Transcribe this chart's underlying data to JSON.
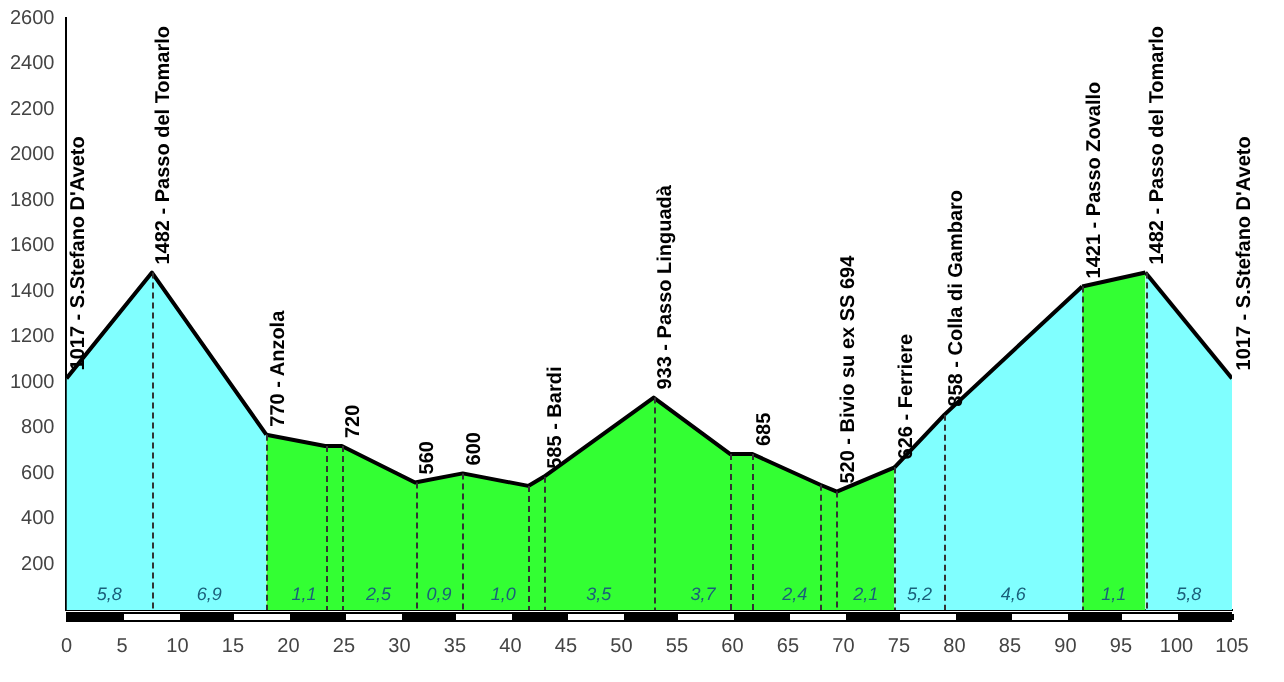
{
  "chart_data": {
    "type": "area",
    "series": [
      {
        "color": "#80ffff",
        "x": [
          0,
          7.7,
          18.0
        ],
        "values": [
          1017,
          1482,
          770
        ]
      },
      {
        "color": "#33ff33",
        "x": [
          18.0,
          23.3,
          24.8,
          31.4,
          35.7,
          41.6,
          43.0,
          52.9,
          59.8,
          61.8,
          67.9,
          69.4,
          74.6
        ],
        "values": [
          770,
          720,
          720,
          560,
          600,
          545,
          585,
          933,
          685,
          685,
          550,
          520,
          626
        ]
      },
      {
        "color": "#80ffff",
        "x": [
          74.6,
          79.1,
          91.5
        ],
        "values": [
          626,
          858,
          1421
        ]
      },
      {
        "color": "#33ff33",
        "x": [
          91.5,
          97.2
        ],
        "values": [
          1421,
          1482
        ]
      },
      {
        "color": "#80ffff",
        "x": [
          97.2,
          105
        ],
        "values": [
          1482,
          1017
        ]
      }
    ],
    "xlim": [
      0,
      105
    ],
    "xticks": [
      0,
      5,
      10,
      15,
      20,
      25,
      30,
      35,
      40,
      45,
      50,
      55,
      60,
      65,
      70,
      75,
      80,
      85,
      90,
      95,
      100,
      105
    ],
    "ylim": [
      0,
      2600
    ],
    "yticks": [
      200,
      400,
      600,
      800,
      1000,
      1200,
      1400,
      1600,
      1800,
      2000,
      2200,
      2400,
      2600
    ],
    "grid": false,
    "legend": false,
    "ref_lines": [
      {
        "axis": "x",
        "value": 7.7,
        "line_style": "dashed"
      },
      {
        "axis": "x",
        "value": 18.0,
        "line_style": "dashed"
      },
      {
        "axis": "x",
        "value": 23.3,
        "line_style": "dashed"
      },
      {
        "axis": "x",
        "value": 24.8,
        "line_style": "dashed"
      },
      {
        "axis": "x",
        "value": 31.4,
        "line_style": "dashed"
      },
      {
        "axis": "x",
        "value": 35.7,
        "line_style": "dashed"
      },
      {
        "axis": "x",
        "value": 41.6,
        "line_style": "dashed"
      },
      {
        "axis": "x",
        "value": 43.0,
        "line_style": "dashed"
      },
      {
        "axis": "x",
        "value": 52.9,
        "line_style": "dashed"
      },
      {
        "axis": "x",
        "value": 59.8,
        "line_style": "dashed"
      },
      {
        "axis": "x",
        "value": 61.8,
        "line_style": "dashed"
      },
      {
        "axis": "x",
        "value": 67.9,
        "line_style": "dashed"
      },
      {
        "axis": "x",
        "value": 69.4,
        "line_style": "dashed"
      },
      {
        "axis": "x",
        "value": 74.6,
        "line_style": "dashed"
      },
      {
        "axis": "x",
        "value": 79.1,
        "line_style": "dashed"
      },
      {
        "axis": "x",
        "value": 91.5,
        "line_style": "dashed"
      },
      {
        "axis": "x",
        "value": 97.2,
        "line_style": "dashed"
      }
    ],
    "annotations": [
      {
        "text": "1017 - S.Stefano D'Aveto",
        "x": 0,
        "y": 1017
      },
      {
        "text": "1482 - Passo del Tomarlo",
        "x": 7.7,
        "y": 1482
      },
      {
        "text": "770 - Anzola",
        "x": 18.0,
        "y": 770
      },
      {
        "text": "720",
        "x": 24.8,
        "y": 720
      },
      {
        "text": "560",
        "x": 31.4,
        "y": 560
      },
      {
        "text": "600",
        "x": 35.7,
        "y": 600
      },
      {
        "text": "585 - Bardi",
        "x": 43.0,
        "y": 585
      },
      {
        "text": "933 - Passo Linguadà",
        "x": 52.9,
        "y": 933
      },
      {
        "text": "685",
        "x": 61.8,
        "y": 685
      },
      {
        "text": "520 - Bivio su ex SS 694",
        "x": 69.4,
        "y": 520
      },
      {
        "text": "626 - Ferriere",
        "x": 74.6,
        "y": 626
      },
      {
        "text": "858 - Colla di Gambaro",
        "x": 79.1,
        "y": 858
      },
      {
        "text": "1421 - Passo Zovallo",
        "x": 91.5,
        "y": 1421
      },
      {
        "text": "1482 - Passo del Tomarlo",
        "x": 97.2,
        "y": 1482
      },
      {
        "text": "1017 - S.Stefano D'Aveto",
        "x": 105,
        "y": 1017
      },
      "5,8",
      "6,9",
      "1,1",
      "2,5",
      "0,9",
      "1,0",
      "3,5",
      "3,7",
      "2,4",
      "2,1",
      "5,2",
      "4,6",
      "1,1",
      "5,8"
    ]
  }
}
